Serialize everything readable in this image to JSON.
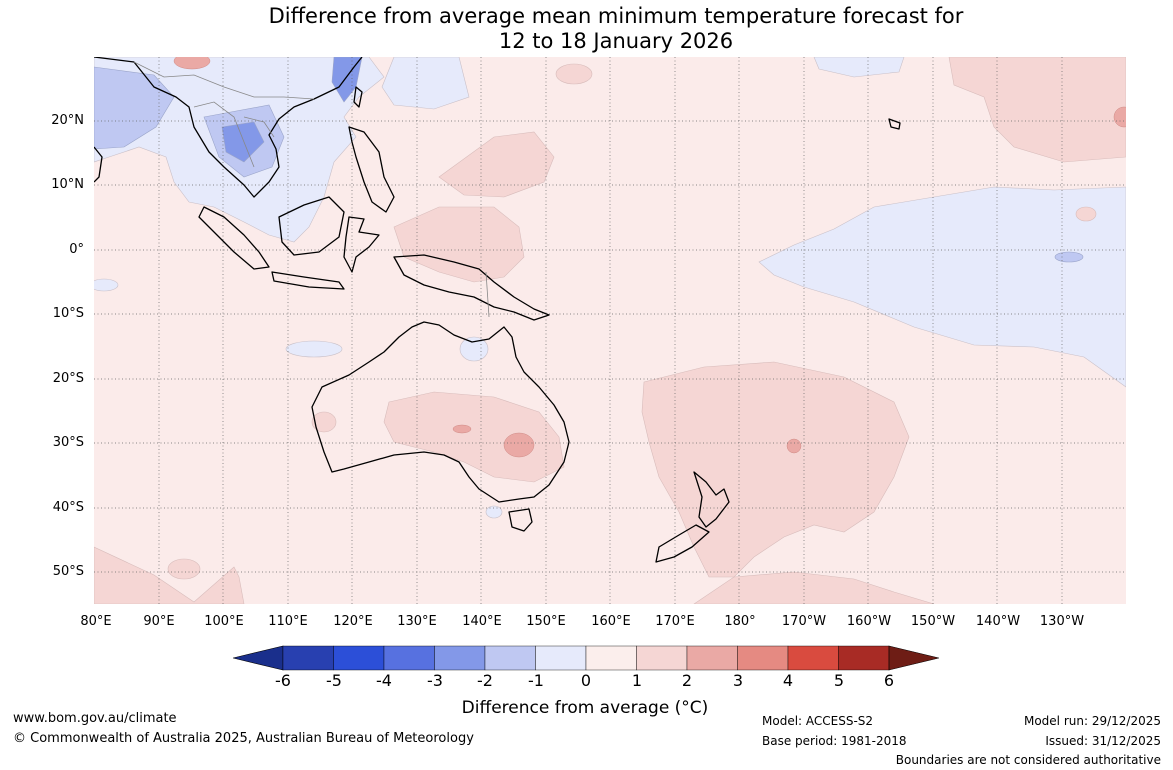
{
  "title": {
    "line1": "Difference from average mean minimum temperature forecast for",
    "line2": "12 to 18 January 2026"
  },
  "map": {
    "lat_labels": [
      "20°N",
      "10°N",
      "0°",
      "10°S",
      "20°S",
      "30°S",
      "40°S",
      "50°S"
    ],
    "lon_labels": [
      "80°E",
      "90°E",
      "100°E",
      "110°E",
      "120°E",
      "130°E",
      "140°E",
      "150°E",
      "160°E",
      "170°E",
      "180°",
      "170°W",
      "160°W",
      "150°W",
      "140°W",
      "130°W"
    ],
    "background_color": "#fbebea"
  },
  "colorbar": {
    "title": "Difference from average (°C)",
    "ticks": [
      "-6",
      "-5",
      "-4",
      "-3",
      "-2",
      "-1",
      "0",
      "1",
      "2",
      "3",
      "4",
      "5",
      "6"
    ],
    "colors": [
      "#1a2f8c",
      "#2840b0",
      "#2c4fd8",
      "#5771e0",
      "#8398e8",
      "#bfc8f2",
      "#e6eafb",
      "#fbeeec",
      "#f5d6d4",
      "#eaa9a5",
      "#e58a82",
      "#d94b3f",
      "#a82b25",
      "#6e1d15"
    ]
  },
  "footer": {
    "website": "www.bom.gov.au/climate",
    "copyright": "© Commonwealth of Australia 2025, Australian Bureau of Meteorology",
    "model": "Model: ACCESS-S2",
    "base_period": "Base period: 1981-2018",
    "model_run": "Model run: 29/12/2025",
    "issued": "Issued: 31/12/2025",
    "disclaimer": "Boundaries are not considered authoritative"
  }
}
